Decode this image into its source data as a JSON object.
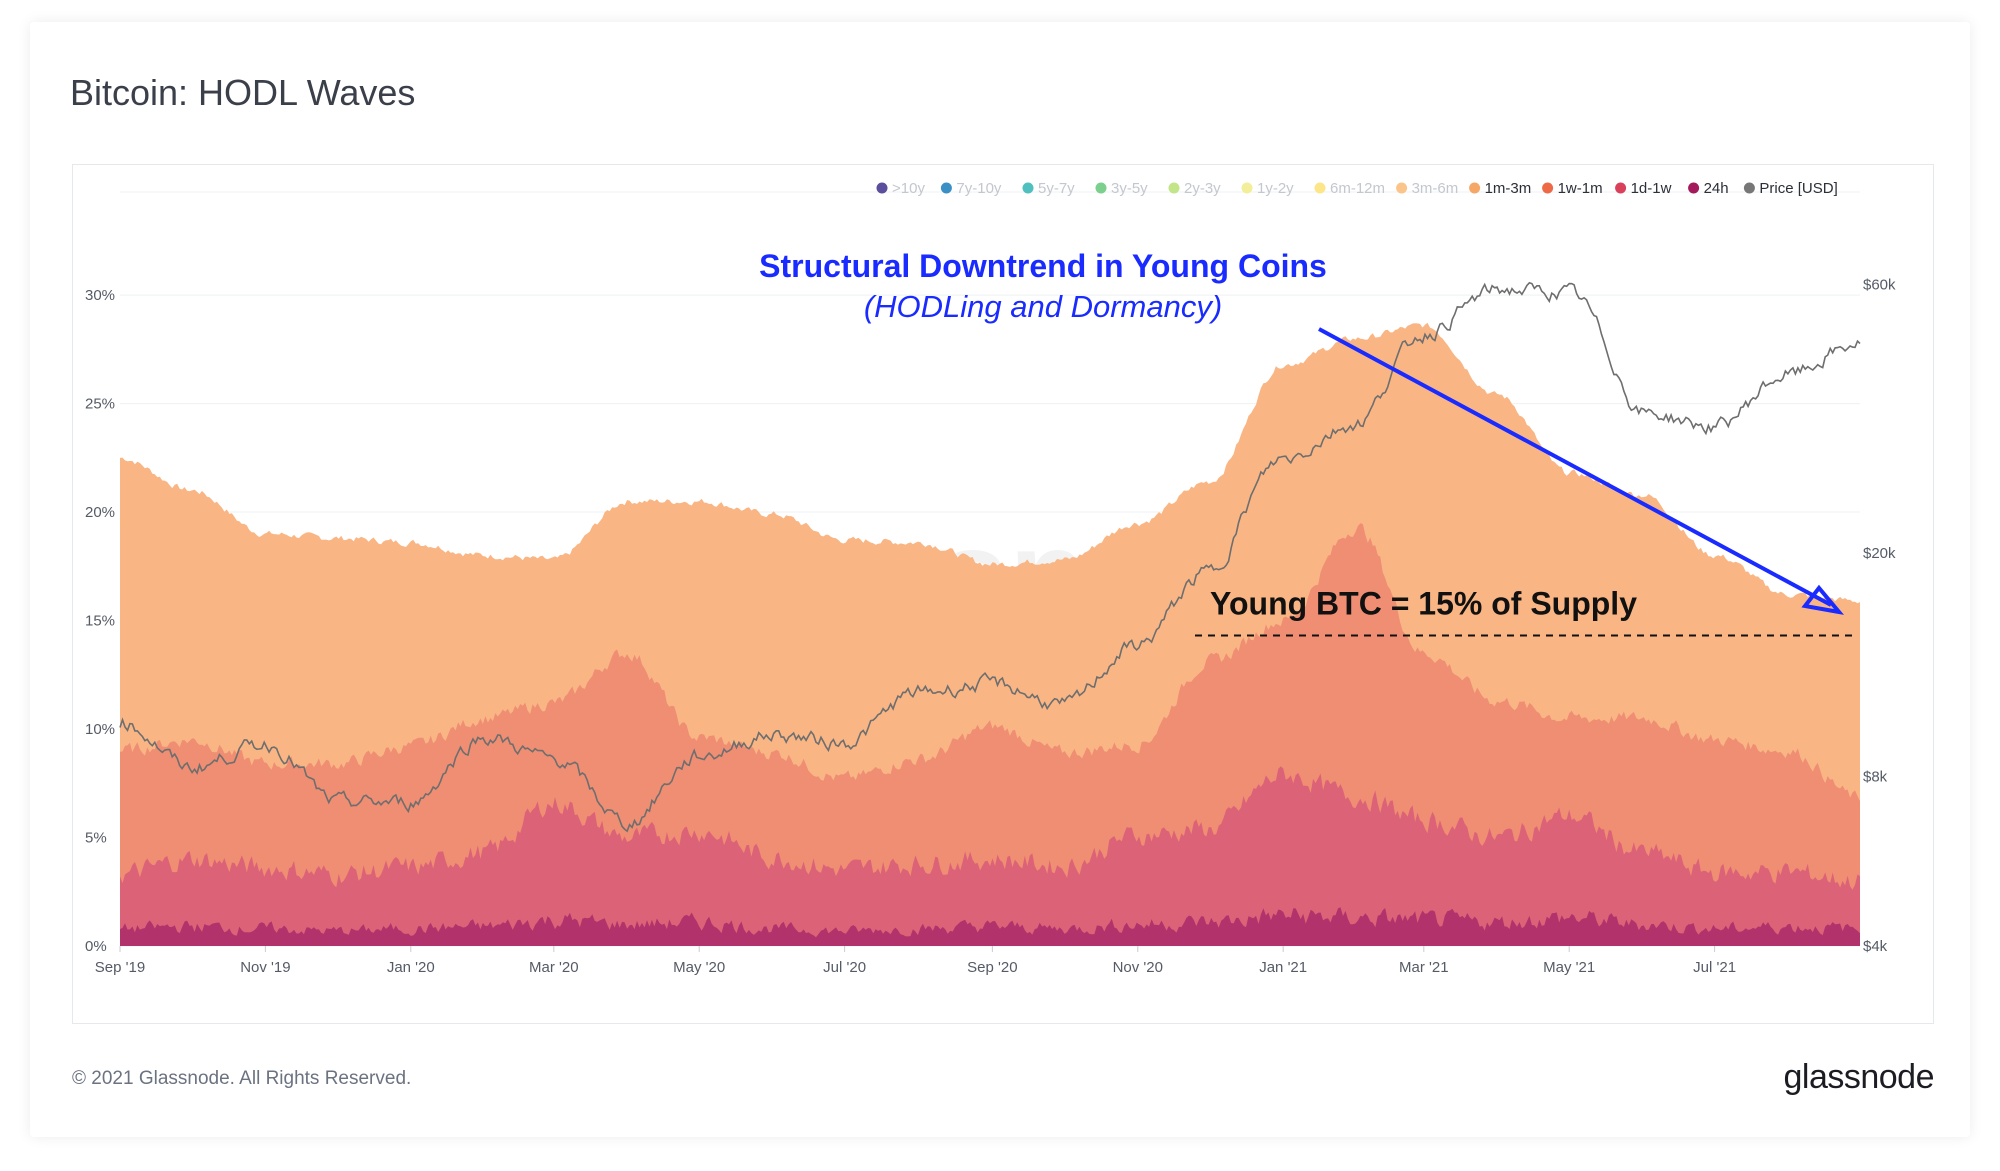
{
  "page": {
    "title": "Bitcoin: HODL Waves",
    "copyright": "© 2021 Glassnode. All Rights Reserved.",
    "brand": "glassnode",
    "watermark": "glassnode"
  },
  "chart_data": {
    "type": "area",
    "title": "Bitcoin: HODL Waves",
    "legend": [
      {
        "name": ">10y",
        "color": "#5b4e9c",
        "active": false
      },
      {
        "name": "7y-10y",
        "color": "#3a8fc4",
        "active": false
      },
      {
        "name": "5y-7y",
        "color": "#4fbfbf",
        "active": false
      },
      {
        "name": "3y-5y",
        "color": "#7ccf8c",
        "active": false
      },
      {
        "name": "2y-3y",
        "color": "#c2e58a",
        "active": false
      },
      {
        "name": "1y-2y",
        "color": "#f2ee9a",
        "active": false
      },
      {
        "name": "6m-12m",
        "color": "#fde68a",
        "active": false
      },
      {
        "name": "3m-6m",
        "color": "#fbc48a",
        "active": false
      },
      {
        "name": "1m-3m",
        "color": "#f6a766",
        "active": true
      },
      {
        "name": "1w-1m",
        "color": "#ee6a46",
        "active": true
      },
      {
        "name": "1d-1w",
        "color": "#d9415a",
        "active": true
      },
      {
        "name": "24h",
        "color": "#a3195b",
        "active": true
      },
      {
        "name": "Price [USD]",
        "color": "#777777",
        "active": true
      }
    ],
    "legend_position": "top-right",
    "x_ticks": [
      "Sep '19",
      "Nov '19",
      "Jan '20",
      "Mar '20",
      "May '20",
      "Jul '20",
      "Sep '20",
      "Nov '20",
      "Jan '21",
      "Mar '21",
      "May '21",
      "Jul '21"
    ],
    "x_range": [
      "2019-09-01",
      "2021-08-31"
    ],
    "y_left": {
      "ticks": [
        "0%",
        "5%",
        "10%",
        "15%",
        "20%",
        "25%",
        "30%"
      ],
      "range": [
        0,
        33
      ]
    },
    "y_right": {
      "ticks": [
        "$4k",
        "$8k",
        "$20k",
        "$60k"
      ],
      "scale": "log",
      "range": [
        4000,
        75000
      ]
    },
    "grid": true,
    "x": [
      "2019-09-01",
      "2019-10-01",
      "2019-11-01",
      "2019-12-01",
      "2020-01-01",
      "2020-02-01",
      "2020-03-01",
      "2020-04-01",
      "2020-05-01",
      "2020-06-01",
      "2020-07-01",
      "2020-08-01",
      "2020-09-01",
      "2020-10-01",
      "2020-11-01",
      "2020-12-01",
      "2021-01-01",
      "2021-02-01",
      "2021-03-01",
      "2021-04-01",
      "2021-05-01",
      "2021-06-01",
      "2021-07-01",
      "2021-08-01",
      "2021-08-31"
    ],
    "series": [
      {
        "name": "24h",
        "unit": "%",
        "values": [
          0.8,
          0.9,
          0.8,
          0.7,
          0.8,
          0.9,
          1.2,
          1.0,
          1.1,
          0.8,
          0.7,
          0.8,
          0.9,
          0.8,
          1.0,
          1.1,
          1.4,
          1.3,
          1.2,
          1.1,
          1.3,
          1.0,
          0.8,
          0.9,
          0.8
        ]
      },
      {
        "name": "1d-1w",
        "unit": "%",
        "values": [
          3.3,
          4.0,
          3.6,
          3.3,
          3.6,
          4.3,
          6.6,
          5.0,
          5.3,
          4.1,
          3.5,
          3.8,
          4.0,
          3.7,
          5.1,
          5.4,
          7.9,
          6.9,
          5.8,
          5.0,
          6.0,
          4.3,
          3.4,
          3.4,
          3.0
        ]
      },
      {
        "name": "1w-1m",
        "unit": "%",
        "values": [
          9.0,
          9.5,
          8.4,
          8.4,
          9.2,
          10.5,
          11.2,
          13.5,
          9.6,
          8.9,
          7.7,
          8.6,
          10.1,
          8.9,
          9.3,
          13.1,
          15.0,
          19.3,
          13.5,
          11.3,
          10.5,
          10.5,
          9.5,
          9.0,
          6.8
        ]
      },
      {
        "name": "1m-3m",
        "unit": "%",
        "values": [
          22.5,
          21.0,
          19.0,
          18.8,
          18.6,
          18.0,
          17.8,
          20.5,
          20.5,
          19.9,
          18.7,
          18.6,
          17.6,
          17.8,
          19.5,
          21.4,
          26.8,
          28.0,
          28.6,
          25.4,
          21.8,
          20.8,
          18.0,
          16.2,
          15.9
        ]
      },
      {
        "name": "Price [USD]",
        "unit": "USD",
        "values": [
          10000,
          8300,
          9150,
          7200,
          7200,
          9400,
          8600,
          6600,
          8700,
          9500,
          9200,
          11300,
          11700,
          10700,
          13700,
          18500,
          29400,
          34000,
          49000,
          58800,
          58000,
          35500,
          33500,
          41500,
          47100
        ]
      }
    ],
    "annotations": [
      {
        "text": "Structural Downtrend in Young Coins",
        "color": "#1a2bff"
      },
      {
        "text": "(HODLing and Dormancy)",
        "color": "#1a2bff"
      },
      {
        "text": "Young BTC = 15% of Supply",
        "color": "#111111",
        "value": 15
      }
    ]
  }
}
